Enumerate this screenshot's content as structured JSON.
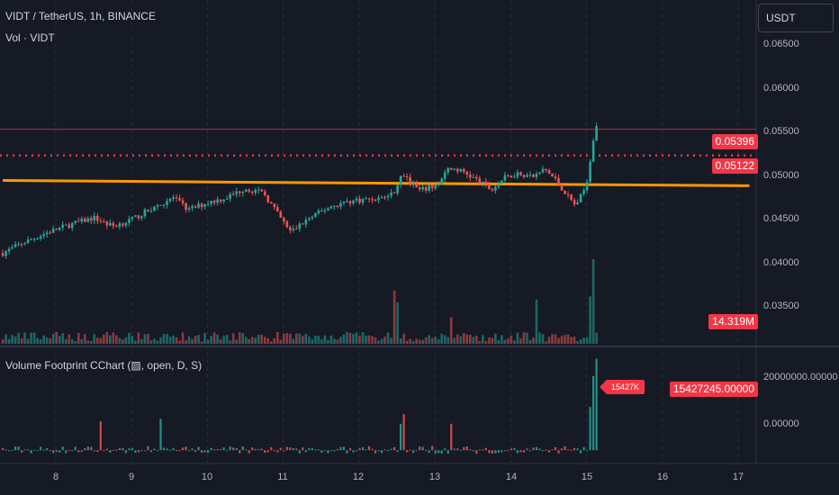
{
  "legend": {
    "symbol": "VIDT / TetherUS, 1h, BINANCE",
    "volume": "Vol · VIDT",
    "indicator": "Volume Footprint CChart (▨, open, D, S)"
  },
  "currency": "USDT",
  "price_axis": [
    "0.06500",
    "0.06000",
    "0.05500",
    "0.05000",
    "0.04500",
    "0.04000",
    "0.03500"
  ],
  "indicator_axis": [
    "20000000.00000",
    "0.00000"
  ],
  "time_axis": [
    "8",
    "9",
    "10",
    "11",
    "12",
    "13",
    "14",
    "15",
    "16",
    "17"
  ],
  "tags": {
    "last_price": "0.05396",
    "level_price": "0.05122",
    "volume": "14.319M",
    "indicator_value": "15427245.00000",
    "footprint_label": "15427K"
  },
  "colors": {
    "background": "#161a25",
    "up": "#26a69a",
    "down": "#ef5350",
    "level": "#f23645",
    "trendline": "#ff9800",
    "grid": "#2a2e39"
  },
  "chart_data": {
    "type": "candlestick",
    "timeframe": "1h",
    "price_range": [
      0.0315,
      0.0675
    ],
    "indicator_range": [
      -2200000,
      21000000
    ],
    "horizontal_levels": [
      {
        "price": 0.05396,
        "style": "solid"
      },
      {
        "price": 0.05122,
        "style": "dotted"
      }
    ],
    "trendline": [
      {
        "day": 7.3,
        "price": 0.0486
      },
      {
        "day": 17.15,
        "price": 0.04805
      }
    ],
    "price_path": [
      [
        7.3,
        0.041
      ],
      [
        7.55,
        0.042
      ],
      [
        7.9,
        0.0432
      ],
      [
        8.2,
        0.044
      ],
      [
        8.5,
        0.0447
      ],
      [
        8.75,
        0.0438
      ],
      [
        9.0,
        0.0445
      ],
      [
        9.3,
        0.0458
      ],
      [
        9.55,
        0.0468
      ],
      [
        9.75,
        0.0455
      ],
      [
        10.0,
        0.0463
      ],
      [
        10.25,
        0.0468
      ],
      [
        10.5,
        0.0478
      ],
      [
        10.75,
        0.0472
      ],
      [
        10.95,
        0.0448
      ],
      [
        11.1,
        0.0432
      ],
      [
        11.3,
        0.0444
      ],
      [
        11.6,
        0.0458
      ],
      [
        11.85,
        0.0464
      ],
      [
        12.05,
        0.0466
      ],
      [
        12.3,
        0.0468
      ],
      [
        12.45,
        0.0472
      ],
      [
        12.55,
        0.0492
      ],
      [
        12.65,
        0.0486
      ],
      [
        12.8,
        0.0475
      ],
      [
        13.05,
        0.0482
      ],
      [
        13.2,
        0.05
      ],
      [
        13.4,
        0.0494
      ],
      [
        13.6,
        0.0484
      ],
      [
        13.75,
        0.0476
      ],
      [
        13.9,
        0.0488
      ],
      [
        14.1,
        0.0494
      ],
      [
        14.3,
        0.049
      ],
      [
        14.45,
        0.0498
      ],
      [
        14.6,
        0.0486
      ],
      [
        14.75,
        0.047
      ],
      [
        14.85,
        0.046
      ],
      [
        14.95,
        0.0472
      ],
      [
        15.02,
        0.049
      ],
      [
        15.08,
        0.0525
      ],
      [
        15.15,
        0.0548
      ],
      [
        15.16,
        0.054
      ]
    ],
    "volume_spikes": [
      {
        "day": 12.45,
        "volume": 9000000
      },
      {
        "day": 12.5,
        "volume": 7000000
      },
      {
        "day": 13.2,
        "volume": 4500000
      },
      {
        "day": 14.35,
        "volume": 7500000
      },
      {
        "day": 15.05,
        "volume": 8000000
      },
      {
        "day": 15.08,
        "volume": 14319000
      }
    ],
    "indicator_spikes": [
      {
        "day": 8.6,
        "value": 6000000
      },
      {
        "day": 9.4,
        "value": 6500000
      },
      {
        "day": 12.55,
        "value": 5500000
      },
      {
        "day": 12.6,
        "value": 7500000
      },
      {
        "day": 13.2,
        "value": 5500000
      },
      {
        "day": 15.05,
        "value": 9000000
      },
      {
        "day": 15.1,
        "value": 15427245
      },
      {
        "day": 15.14,
        "value": 19000000
      }
    ]
  }
}
